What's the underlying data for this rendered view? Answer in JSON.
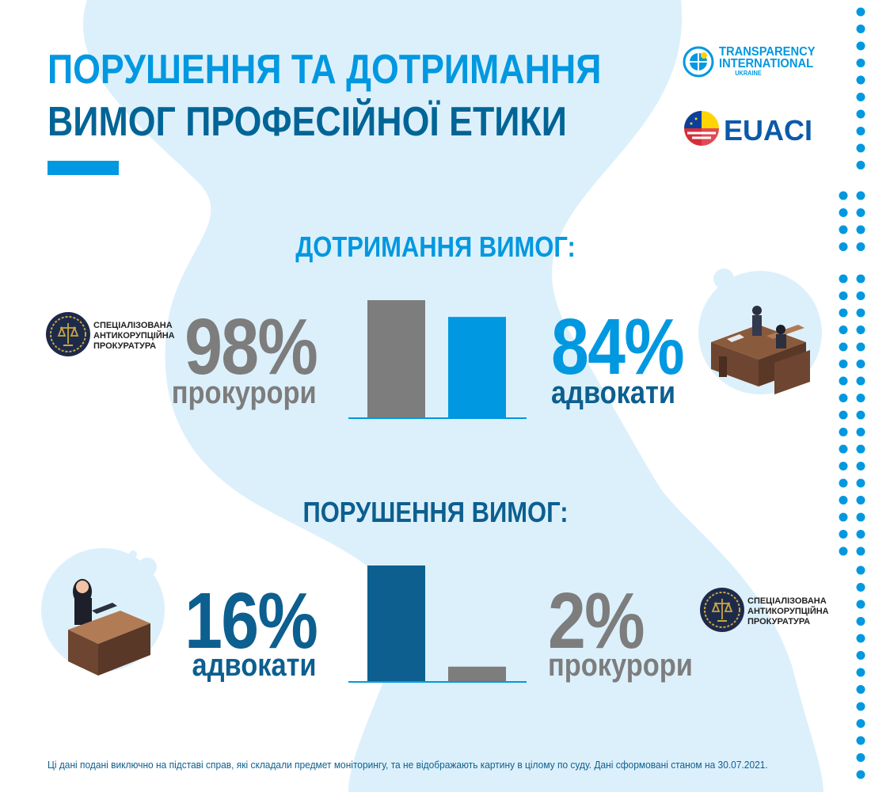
{
  "title": {
    "line1": "ПОРУШЕННЯ ТА ДОТРИМАННЯ",
    "line2": "ВИМОГ ПРОФЕСІЙНОЇ ЕТИКИ"
  },
  "logos": {
    "ti": {
      "line1": "TRANSPARENCY",
      "line2": "INTERNATIONAL",
      "line3": "UKRAINE"
    },
    "euaci": "EUACI",
    "sap": {
      "line1": "СПЕЦІАЛІЗОВАНА",
      "line2": "АНТИКОРУПЦІЙНА",
      "line3": "ПРОКУРАТУРА"
    }
  },
  "colors": {
    "accent": "#0098e0",
    "dark_blue": "#0c5f8f",
    "gray": "#7d7d7d",
    "blob": "#dcf0fb"
  },
  "compliance": {
    "heading": "ДОТРИМАННЯ ВИМОГ:",
    "left": {
      "pct": "98%",
      "label": "прокурори"
    },
    "right": {
      "pct": "84%",
      "label": "адвокати"
    }
  },
  "violation": {
    "heading": "ПОРУШЕННЯ ВИМОГ:",
    "left": {
      "pct": "16%",
      "label": "адвокати"
    },
    "right": {
      "pct": "2%",
      "label": "прокурори"
    }
  },
  "chart_data": [
    {
      "type": "bar",
      "title": "ДОТРИМАННЯ ВИМОГ:",
      "categories": [
        "прокурори",
        "адвокати"
      ],
      "values": [
        98,
        84
      ],
      "unit": "%",
      "colors": [
        "#7d7d7d",
        "#0098e0"
      ],
      "ylim": [
        0,
        100
      ],
      "grid": false
    },
    {
      "type": "bar",
      "title": "ПОРУШЕННЯ ВИМОГ:",
      "categories": [
        "адвокати",
        "прокурори"
      ],
      "values": [
        16,
        2
      ],
      "unit": "%",
      "colors": [
        "#0c5f8f",
        "#7d7d7d"
      ],
      "ylim": [
        0,
        16
      ],
      "grid": false
    }
  ],
  "footer": "Ці дані подані виключно на підставі справ, які складали предмет моніторингу, та не відображають картину в цілому по суду. Дані сформовані станом на 30.07.2021."
}
